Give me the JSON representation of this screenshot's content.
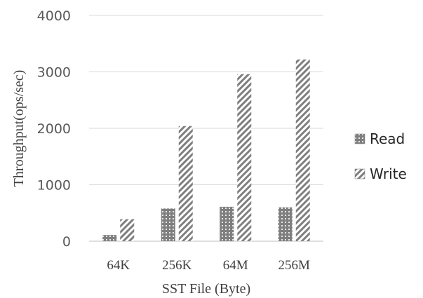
{
  "chart_data": {
    "type": "bar",
    "categories": [
      "64K",
      "256K",
      "64M",
      "256M"
    ],
    "series": [
      {
        "name": "Read",
        "values": [
          110,
          580,
          610,
          600
        ],
        "color": "#7f7f7f",
        "pattern": "dots"
      },
      {
        "name": "Write",
        "values": [
          390,
          2040,
          2960,
          3220
        ],
        "color": "#7f7f7f",
        "pattern": "diagonal-stripes"
      }
    ],
    "title": "",
    "xlabel": "SST File (Byte)",
    "ylabel": "Throughput(ops/sec)",
    "ylim": [
      0,
      4000
    ],
    "yticks": [
      "0",
      "1000",
      "2000",
      "3000",
      "4000"
    ],
    "grid": true,
    "legend_position": "right"
  }
}
